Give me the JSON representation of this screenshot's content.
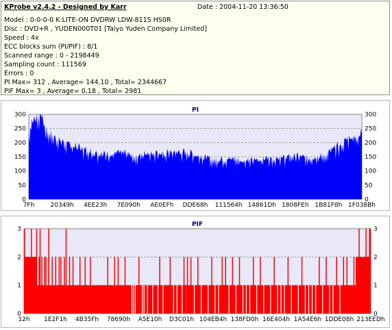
{
  "header": {
    "app_title": "KProbe v2.4.2 - Designed by Karr",
    "date": "Date : 2004-11-20 13:36:50",
    "lines": [
      "Model : 0-0-0-0 K:LITE-ON DVDRW LDW-811S   HS0R",
      "Disc : DVD+R , YUDEN000T01 [Taiyo Yuden Company Limited]",
      "Speed : 4x",
      "ECC blocks sum (PI/PIF) : 8/1",
      "Scanned range : 0 - 2198449",
      "Sampling count : 111569",
      "Errors : 0",
      "PI Max= 312 , Average= 144,10 , Total= 2344667",
      "PIF Max= 3 , Average= 0,18 , Total= 2981"
    ]
  },
  "colors": {
    "pi_fill": "#0000ff",
    "pif_fill": "#ff0000",
    "plot_bg": "#e8e8f8",
    "title_color": "#000080"
  },
  "chart_data": [
    {
      "type": "area",
      "title": "PI",
      "ylim": [
        0,
        300
      ],
      "yticks": [
        "0",
        "50",
        "100",
        "150",
        "200",
        "250",
        "300"
      ],
      "xticks": [
        "7Fh",
        "20349h",
        "4EE23h",
        "7E090h",
        "AE0EFh",
        "DDE68h",
        "111564h",
        "14861Dh",
        "1808FEh",
        "1B81F8h",
        "1F038Bh"
      ],
      "grid": true,
      "values": [
        240,
        282,
        302,
        300,
        275,
        248,
        232,
        225,
        218,
        205,
        198,
        192,
        188,
        185,
        182,
        180,
        176,
        172,
        168,
        165,
        162,
        160,
        162,
        165,
        168,
        165,
        162,
        160,
        158,
        160,
        165,
        170,
        172,
        168,
        165,
        162,
        165,
        170,
        172,
        170,
        168,
        172,
        170,
        165,
        160,
        155,
        150,
        148,
        145,
        145,
        143,
        142,
        142,
        145,
        148,
        146,
        144,
        142,
        141,
        140,
        140,
        142,
        145,
        148,
        150,
        152,
        150,
        152,
        155,
        155,
        155,
        153,
        152,
        150,
        150,
        152,
        155,
        160,
        165,
        175,
        185,
        195,
        205,
        215,
        222,
        228,
        232,
        236
      ]
    },
    {
      "type": "bar",
      "title": "PIF",
      "ylim": [
        0,
        3
      ],
      "yticks": [
        "0",
        "1",
        "2",
        "3"
      ],
      "xticks": [
        "12h",
        "1E2F1h",
        "4B35Fh",
        "78690h",
        "A5E10h",
        "D3C01h",
        "104EB4h",
        "138FD0h",
        "16E404h",
        "1A54E6h",
        "1DDE08h",
        "213EEDh"
      ],
      "grid": true,
      "baseline": 1,
      "value2_positions": [
        0.002,
        0.005,
        0.01,
        0.015,
        0.02,
        0.025,
        0.028,
        0.034,
        0.042,
        0.05,
        0.058,
        0.062,
        0.07,
        0.08,
        0.09,
        0.1,
        0.105,
        0.115,
        0.13,
        0.14,
        0.16,
        0.175,
        0.19,
        0.24,
        0.26,
        0.27,
        0.29,
        0.33,
        0.39,
        0.42,
        0.46,
        0.47,
        0.48,
        0.5,
        0.54,
        0.57,
        0.58,
        0.6,
        0.62,
        0.66,
        0.68,
        0.72,
        0.76,
        0.8,
        0.85,
        0.87,
        0.9,
        0.92,
        0.93,
        0.95,
        0.96,
        0.97,
        0.98,
        0.99,
        0.995
      ],
      "value3_positions": [
        0.0,
        0.02,
        0.035,
        0.045,
        0.07,
        0.12,
        0.965,
        0.985,
        0.995,
        1.0
      ],
      "value0_positions": [
        0.31,
        0.315,
        0.32,
        0.34,
        0.345,
        0.355,
        0.37,
        0.385,
        0.4,
        0.43,
        0.44,
        0.455,
        0.47,
        0.49,
        0.51,
        0.53,
        0.55,
        0.56,
        0.59,
        0.61,
        0.63,
        0.64,
        0.65,
        0.67,
        0.69,
        0.71,
        0.73,
        0.74,
        0.75,
        0.77,
        0.79,
        0.81,
        0.82,
        0.83,
        0.84,
        0.86,
        0.88,
        0.89,
        0.91
      ]
    }
  ]
}
